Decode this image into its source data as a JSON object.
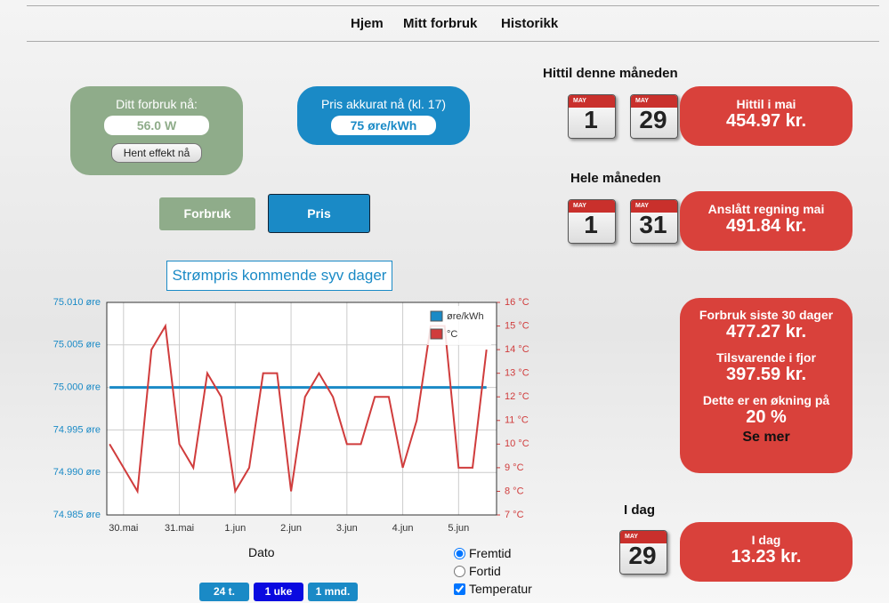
{
  "nav": [
    "Hjem",
    "Mitt forbruk",
    "Historikk"
  ],
  "usage_panel": {
    "label": "Ditt forbruk nå:",
    "value": "56.0 W",
    "button": "Hent effekt nå"
  },
  "price_panel": {
    "label": "Pris akkurat nå (kl. 17)",
    "value": "75 øre/kWh"
  },
  "tabs": [
    "Forbruk",
    "Pris"
  ],
  "chart_data": {
    "type": "line",
    "title": "Strømpris kommende syv dager",
    "xlabel": "Dato",
    "x": [
      -0.25,
      0,
      0.25,
      0.5,
      0.75,
      1,
      1.25,
      1.5,
      1.75,
      2,
      2.25,
      2.5,
      2.75,
      3,
      3.25,
      3.5,
      3.75,
      4,
      4.25,
      4.5,
      4.75,
      5,
      5.25,
      5.5,
      5.75,
      6,
      6.25,
      6.5
    ],
    "xlim": [
      -0.3,
      6.68
    ],
    "xticks": [
      {
        "value": 0,
        "label": "30.mai"
      },
      {
        "value": 1,
        "label": "31.mai"
      },
      {
        "value": 2,
        "label": "1.jun"
      },
      {
        "value": 3,
        "label": "2.jun"
      },
      {
        "value": 4,
        "label": "3.jun"
      },
      {
        "value": 5,
        "label": "4.jun"
      },
      {
        "value": 6,
        "label": "5.jun"
      }
    ],
    "ylim": [
      74.985,
      75.01
    ],
    "yticks": [
      {
        "value": 74.985,
        "label": "74.985 øre"
      },
      {
        "value": 74.99,
        "label": "74.990 øre"
      },
      {
        "value": 74.995,
        "label": "74.995 øre"
      },
      {
        "value": 75,
        "label": "75.000 øre"
      },
      {
        "value": 75.005,
        "label": "75.005 øre"
      },
      {
        "value": 75.01,
        "label": "75.010 øre"
      }
    ],
    "y2lim": [
      7,
      16
    ],
    "y2ticks": [
      {
        "value": 7,
        "label": "7 °C"
      },
      {
        "value": 8,
        "label": "8 °C"
      },
      {
        "value": 9,
        "label": "9 °C"
      },
      {
        "value": 10,
        "label": "10 °C"
      },
      {
        "value": 11,
        "label": "11 °C"
      },
      {
        "value": 12,
        "label": "12 °C"
      },
      {
        "value": 13,
        "label": "13 °C"
      },
      {
        "value": 14,
        "label": "14 °C"
      },
      {
        "value": 15,
        "label": "15 °C"
      },
      {
        "value": 16,
        "label": "16 °C"
      }
    ],
    "grid": true,
    "legend": "upper right",
    "series": [
      {
        "name": "øre/kWh",
        "color": "#1a8ac6",
        "values": [
          75,
          75,
          75,
          75,
          75,
          75,
          75,
          75,
          75,
          75,
          75,
          75,
          75,
          75,
          75,
          75,
          75,
          75,
          75,
          75,
          75,
          75,
          75,
          75,
          75,
          75,
          75,
          75
        ]
      },
      {
        "name": "°C",
        "color": "#d03c3c",
        "axis": "y2",
        "values": [
          10,
          9,
          8,
          14,
          15,
          10,
          9,
          13,
          12,
          8,
          9,
          13,
          13,
          8,
          12,
          13,
          12,
          10,
          10,
          12,
          12,
          9,
          11,
          15,
          15,
          9,
          9,
          14
        ]
      }
    ]
  },
  "chart_options": {
    "radios": [
      "Fremtid",
      "Fortid"
    ],
    "checkbox": "Temperatur",
    "ranges": [
      "24 t.",
      "1 uke",
      "1 mnd."
    ]
  },
  "month_to_date": {
    "heading": "Hittil denne måneden",
    "calendars": [
      {
        "month": "MAY",
        "day": "1"
      },
      {
        "month": "MAY",
        "day": "29"
      }
    ],
    "label": "Hittil i mai",
    "amount": "454.97 kr."
  },
  "whole_month": {
    "heading": "Hele måneden",
    "calendars": [
      {
        "month": "MAY",
        "day": "1"
      },
      {
        "month": "MAY",
        "day": "31"
      }
    ],
    "label": "Anslått regning mai",
    "amount": "491.84 kr."
  },
  "comparison": {
    "last30_label": "Forbruk siste 30 dager",
    "last30_amount": "477.27 kr.",
    "lastyear_label": "Tilsvarende i fjor",
    "lastyear_amount": "397.59 kr.",
    "change_label": "Dette er en økning på",
    "change_value": "20 %",
    "link": "Se mer"
  },
  "today": {
    "heading": "I dag",
    "calendar": {
      "month": "MAY",
      "day": "29"
    },
    "label": "I dag",
    "amount": "13.23 kr."
  }
}
